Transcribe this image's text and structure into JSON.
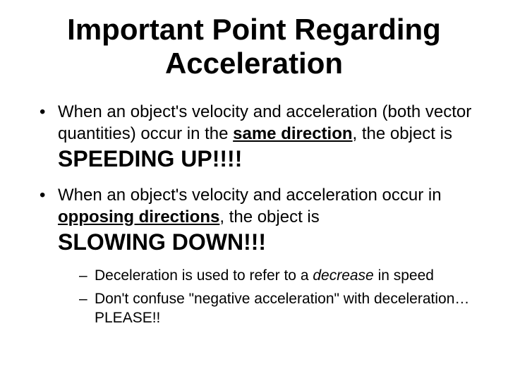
{
  "title": "Important Point Regarding Acceleration",
  "bullets": [
    {
      "pre1": "When an object's velocity and acceleration (both vector quantities) occur in the ",
      "ub1": "same direction",
      "post1": ", the object is ",
      "big1": "SPEEDING UP!!!!"
    },
    {
      "pre2": "When an object's velocity and acceleration occur in ",
      "ub2": "opposing directions",
      "post2": ", the object is ",
      "big2": "SLOWING DOWN!!!",
      "subs": [
        {
          "s1a": "Deceleration is used to refer to a ",
          "s1em": "decrease",
          "s1b": " in speed"
        },
        {
          "s2": "Don't confuse \"negative acceleration\" with deceleration…PLEASE!!"
        }
      ]
    }
  ],
  "style": {
    "background_color": "#ffffff",
    "text_color": "#000000",
    "title_fontsize": 42,
    "body_fontsize": 24,
    "sub_fontsize": 21,
    "big_fontsize": 32,
    "font_family": "Arial"
  }
}
